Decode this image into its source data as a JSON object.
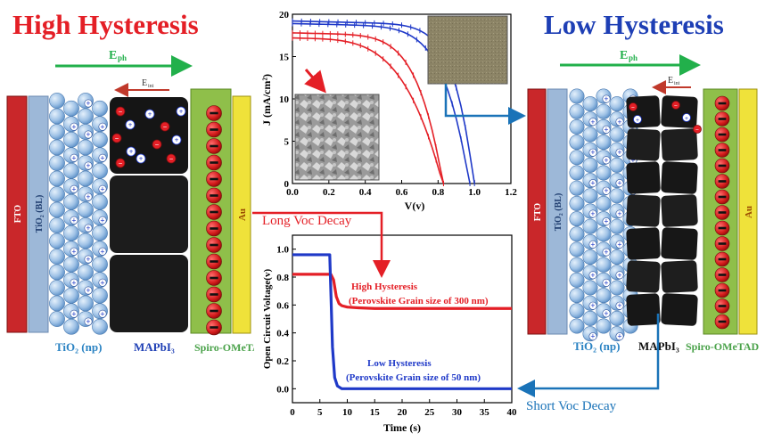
{
  "left_panel": {
    "title": "High Hysteresis",
    "eph_label": "E",
    "eph_sub": "ph",
    "eint_label": "E",
    "eint_sub": "int",
    "fto": "FTO",
    "tio2_bl": "TiO₂ (BL)",
    "au": "Au",
    "tio2_np": "TiO₂ (np)",
    "mapbi3": "MAPbI₃",
    "spiro": "Spiro-OMeTAD"
  },
  "right_panel": {
    "title": "Low Hysteresis",
    "eph_label": "E",
    "eph_sub": "ph",
    "eint_label": "E",
    "eint_sub": "int",
    "fto": "FTO",
    "tio2_bl": "TiO₂ (BL)",
    "au": "Au",
    "tio2_np": "TiO₂ (np)",
    "mapbi3": "MAPbI₃",
    "spiro": "Spiro-OMeTAD"
  },
  "annotations": {
    "long_decay": "Long Voc Decay",
    "short_decay": "Short Voc Decay"
  },
  "colors": {
    "red": "#e41f26",
    "blue": "#1f39c8",
    "arrow_green": "#22b04b",
    "arrow_blue": "#1a73b8",
    "fto": "#c9272a",
    "bl": "#9db8d8",
    "au": "#efe23a",
    "spiro": "#8fbf4a"
  },
  "chart_data": [
    {
      "type": "line",
      "title": "",
      "xlabel": "V(v)",
      "ylabel": "J (mA/cm²)",
      "xlim": [
        0.0,
        1.2
      ],
      "ylim": [
        0,
        20
      ],
      "x_ticks": [
        "0.0",
        "0.2",
        "0.4",
        "0.6",
        "0.8",
        "1.0",
        "1.2"
      ],
      "y_ticks": [
        "0",
        "5",
        "10",
        "15",
        "20"
      ],
      "series": [
        {
          "name": "blue-forward",
          "color": "#1f39c8",
          "voc": 1.0,
          "jsc": 19.2,
          "shape": 9
        },
        {
          "name": "blue-reverse",
          "color": "#1f39c8",
          "voc": 0.975,
          "jsc": 18.9,
          "shape": 7
        },
        {
          "name": "red-forward",
          "color": "#e41f26",
          "voc": 0.83,
          "jsc": 17.8,
          "shape": 6
        },
        {
          "name": "red-reverse",
          "color": "#e41f26",
          "voc": 0.83,
          "jsc": 17.2,
          "shape": 4
        }
      ]
    },
    {
      "type": "line",
      "title": "",
      "xlabel": "Time (s)",
      "ylabel": "Open Circuit Voltage(v)",
      "xlim": [
        0,
        40
      ],
      "ylim": [
        -0.1,
        1.1
      ],
      "x_ticks": [
        "0",
        "5",
        "10",
        "15",
        "20",
        "25",
        "30",
        "35",
        "40"
      ],
      "y_ticks": [
        "0.0",
        "0.2",
        "0.4",
        "0.6",
        "0.8",
        "1.0"
      ],
      "series": [
        {
          "name": "High Hysteresis",
          "note": "(Perovskite Grain size of 300 nm)",
          "color": "#e41f26",
          "x": [
            0,
            7,
            7.5,
            8,
            8.5,
            9,
            10,
            12,
            15,
            20,
            25,
            30,
            35,
            40
          ],
          "y": [
            0.82,
            0.82,
            0.78,
            0.66,
            0.61,
            0.595,
            0.585,
            0.58,
            0.575,
            0.575,
            0.575,
            0.575,
            0.575,
            0.575
          ]
        },
        {
          "name": "Low Hysteresis",
          "note": "(Perovskite Grain size of 50 nm)",
          "color": "#1f39c8",
          "x": [
            0,
            6.8,
            7.0,
            7.3,
            7.7,
            8.2,
            9,
            10,
            20,
            30,
            40
          ],
          "y": [
            0.96,
            0.96,
            0.7,
            0.3,
            0.08,
            0.02,
            0.0,
            0.0,
            0.0,
            0.0,
            0.0
          ]
        }
      ]
    }
  ]
}
